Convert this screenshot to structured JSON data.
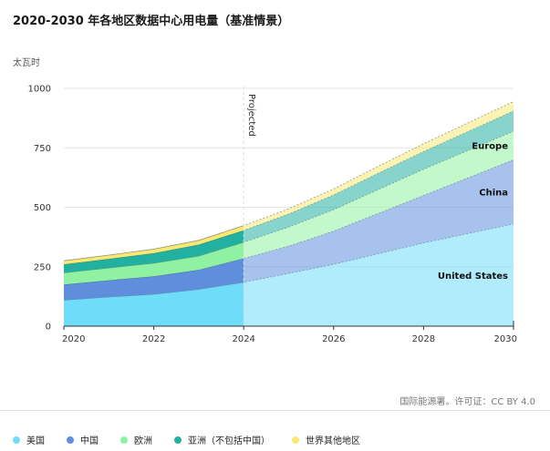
{
  "chart_data": {
    "type": "area",
    "stacked": true,
    "title": "2020-2030 年各地区数据中心用电量（基准情景）",
    "ylabel": "太瓦时",
    "ylim": [
      0,
      1000
    ],
    "yticks": [
      0,
      250,
      500,
      750,
      1000
    ],
    "xlim": [
      2020,
      2030
    ],
    "xticks": [
      2020,
      2022,
      2024,
      2026,
      2028,
      2030
    ],
    "x": [
      2020,
      2021,
      2022,
      2023,
      2024,
      2025,
      2026,
      2027,
      2028,
      2029,
      2030
    ],
    "projected_from": 2024,
    "projected_label": "Projected",
    "grid": true,
    "legend_position": "bottom",
    "series": [
      {
        "name": "美国",
        "label": "United States",
        "color": "#6fdcfa",
        "values": [
          110,
          123,
          135,
          155,
          185,
          222,
          260,
          305,
          350,
          390,
          430
        ]
      },
      {
        "name": "中国",
        "label": "China",
        "color": "#5f8fdc",
        "values": [
          65,
          70,
          75,
          82,
          100,
          115,
          140,
          170,
          200,
          235,
          270
        ]
      },
      {
        "name": "欧洲",
        "label": "Europe",
        "color": "#8ff2a2",
        "values": [
          50,
          52,
          55,
          58,
          68,
          80,
          90,
          100,
          110,
          115,
          120
        ]
      },
      {
        "name": "亚洲（不包括中国）",
        "label": "",
        "color": "#22b0a0",
        "values": [
          35,
          38,
          42,
          48,
          50,
          55,
          62,
          70,
          75,
          80,
          85
        ]
      },
      {
        "name": "世界其他地区",
        "label": "",
        "color": "#f7e974",
        "values": [
          15,
          16,
          17,
          18,
          20,
          22,
          25,
          28,
          32,
          36,
          40
        ]
      }
    ],
    "source": "国际能源署。许可证：CC BY 4.0"
  }
}
